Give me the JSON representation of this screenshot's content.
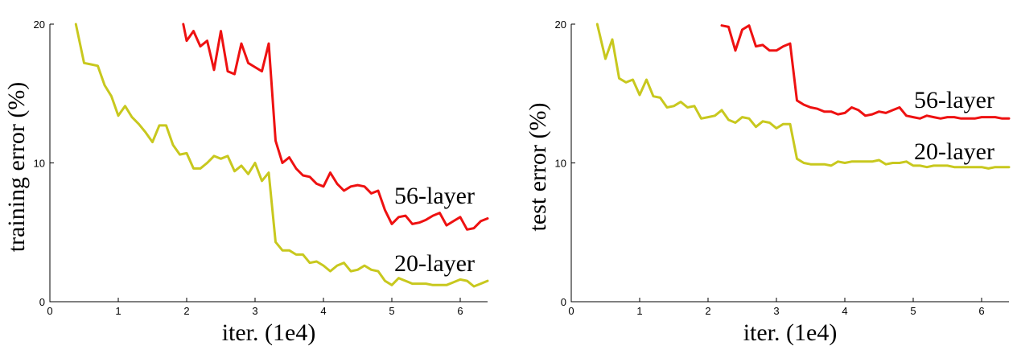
{
  "chart_data": [
    {
      "type": "line",
      "xlabel": "iter. (1e4)",
      "ylabel": "training error (%)",
      "xlim": [
        0,
        6.4
      ],
      "ylim": [
        0,
        20
      ],
      "xticks": [
        0,
        1,
        2,
        3,
        4,
        5,
        6
      ],
      "yticks": [
        0,
        10,
        20
      ],
      "grid": false,
      "legend": "none",
      "series": [
        {
          "name": "56-layer",
          "color": "#ee1111",
          "x": [
            1.95,
            2.0,
            2.1,
            2.2,
            2.3,
            2.4,
            2.5,
            2.6,
            2.7,
            2.8,
            2.9,
            3.0,
            3.1,
            3.2,
            3.3,
            3.4,
            3.5,
            3.6,
            3.7,
            3.8,
            3.9,
            4.0,
            4.1,
            4.2,
            4.3,
            4.4,
            4.5,
            4.6,
            4.7,
            4.8,
            4.9,
            5.0,
            5.1,
            5.2,
            5.3,
            5.4,
            5.5,
            5.6,
            5.7,
            5.8,
            5.9,
            6.0,
            6.1,
            6.2,
            6.3,
            6.4
          ],
          "values": [
            20.0,
            18.8,
            19.5,
            18.4,
            18.8,
            16.7,
            19.5,
            16.6,
            16.4,
            18.6,
            17.2,
            16.9,
            16.6,
            18.6,
            11.6,
            10.0,
            10.4,
            9.6,
            9.1,
            9.0,
            8.5,
            8.3,
            9.3,
            8.5,
            8.0,
            8.3,
            8.4,
            8.3,
            7.8,
            8.0,
            6.6,
            5.6,
            6.1,
            6.2,
            5.6,
            5.7,
            5.9,
            6.2,
            6.4,
            5.5,
            5.8,
            6.1,
            5.2,
            5.3,
            5.8,
            6.0
          ]
        },
        {
          "name": "20-layer",
          "color": "#c8c81e",
          "x": [
            0.38,
            0.5,
            0.6,
            0.7,
            0.8,
            0.9,
            1.0,
            1.1,
            1.2,
            1.3,
            1.4,
            1.5,
            1.6,
            1.7,
            1.8,
            1.9,
            2.0,
            2.1,
            2.2,
            2.3,
            2.4,
            2.5,
            2.6,
            2.7,
            2.8,
            2.9,
            3.0,
            3.1,
            3.2,
            3.3,
            3.4,
            3.5,
            3.6,
            3.7,
            3.8,
            3.9,
            4.0,
            4.1,
            4.2,
            4.3,
            4.4,
            4.5,
            4.6,
            4.7,
            4.8,
            4.9,
            5.0,
            5.1,
            5.2,
            5.3,
            5.4,
            5.5,
            5.6,
            5.7,
            5.8,
            5.9,
            6.0,
            6.1,
            6.2,
            6.3,
            6.4
          ],
          "values": [
            20.0,
            17.2,
            17.1,
            17.0,
            15.6,
            14.8,
            13.4,
            14.1,
            13.3,
            12.8,
            12.2,
            11.5,
            12.7,
            12.7,
            11.3,
            10.6,
            10.7,
            9.6,
            9.6,
            10.0,
            10.5,
            10.3,
            10.5,
            9.4,
            9.8,
            9.2,
            10.0,
            8.7,
            9.3,
            4.3,
            3.7,
            3.7,
            3.4,
            3.4,
            2.8,
            2.9,
            2.6,
            2.2,
            2.6,
            2.8,
            2.2,
            2.3,
            2.6,
            2.3,
            2.2,
            1.5,
            1.2,
            1.7,
            1.5,
            1.3,
            1.3,
            1.3,
            1.2,
            1.2,
            1.2,
            1.4,
            1.6,
            1.5,
            1.1,
            1.3,
            1.5
          ]
        }
      ]
    },
    {
      "type": "line",
      "xlabel": "iter. (1e4)",
      "ylabel": "test error (%)",
      "xlim": [
        0,
        6.4
      ],
      "ylim": [
        0,
        20
      ],
      "xticks": [
        0,
        1,
        2,
        3,
        4,
        5,
        6
      ],
      "yticks": [
        0,
        10,
        20
      ],
      "grid": false,
      "legend": "none",
      "series": [
        {
          "name": "56-layer",
          "color": "#ee1111",
          "x": [
            2.2,
            2.3,
            2.4,
            2.5,
            2.6,
            2.7,
            2.8,
            2.9,
            3.0,
            3.1,
            3.2,
            3.3,
            3.4,
            3.5,
            3.6,
            3.7,
            3.8,
            3.9,
            4.0,
            4.1,
            4.2,
            4.3,
            4.4,
            4.5,
            4.6,
            4.7,
            4.8,
            4.9,
            5.0,
            5.1,
            5.2,
            5.3,
            5.4,
            5.5,
            5.6,
            5.7,
            5.8,
            5.9,
            6.0,
            6.1,
            6.2,
            6.3,
            6.4
          ],
          "values": [
            19.9,
            19.8,
            18.1,
            19.6,
            19.9,
            18.4,
            18.5,
            18.1,
            18.1,
            18.4,
            18.6,
            14.5,
            14.2,
            14.0,
            13.9,
            13.7,
            13.7,
            13.5,
            13.6,
            14.0,
            13.8,
            13.4,
            13.5,
            13.7,
            13.6,
            13.8,
            14.0,
            13.4,
            13.3,
            13.2,
            13.4,
            13.3,
            13.2,
            13.3,
            13.3,
            13.2,
            13.2,
            13.2,
            13.3,
            13.3,
            13.3,
            13.2,
            13.2
          ]
        },
        {
          "name": "20-layer",
          "color": "#c8c81e",
          "x": [
            0.38,
            0.5,
            0.6,
            0.7,
            0.8,
            0.9,
            1.0,
            1.1,
            1.2,
            1.3,
            1.4,
            1.5,
            1.6,
            1.7,
            1.8,
            1.9,
            2.0,
            2.1,
            2.2,
            2.3,
            2.4,
            2.5,
            2.6,
            2.7,
            2.8,
            2.9,
            3.0,
            3.1,
            3.2,
            3.3,
            3.4,
            3.5,
            3.6,
            3.7,
            3.8,
            3.9,
            4.0,
            4.1,
            4.2,
            4.3,
            4.4,
            4.5,
            4.6,
            4.7,
            4.8,
            4.9,
            5.0,
            5.1,
            5.2,
            5.3,
            5.4,
            5.5,
            5.6,
            5.7,
            5.8,
            5.9,
            6.0,
            6.1,
            6.2,
            6.3,
            6.4
          ],
          "values": [
            20.0,
            17.5,
            18.9,
            16.1,
            15.8,
            16.0,
            14.9,
            16.0,
            14.8,
            14.7,
            14.0,
            14.1,
            14.4,
            14.0,
            14.1,
            13.2,
            13.3,
            13.4,
            13.8,
            13.1,
            12.9,
            13.3,
            13.2,
            12.6,
            13.0,
            12.9,
            12.5,
            12.8,
            12.8,
            10.3,
            10.0,
            9.9,
            9.9,
            9.9,
            9.8,
            10.1,
            10.0,
            10.1,
            10.1,
            10.1,
            10.1,
            10.2,
            9.9,
            10.0,
            10.0,
            10.1,
            9.8,
            9.8,
            9.7,
            9.8,
            9.8,
            9.8,
            9.7,
            9.7,
            9.7,
            9.7,
            9.7,
            9.6,
            9.7,
            9.7,
            9.7
          ]
        }
      ]
    }
  ]
}
